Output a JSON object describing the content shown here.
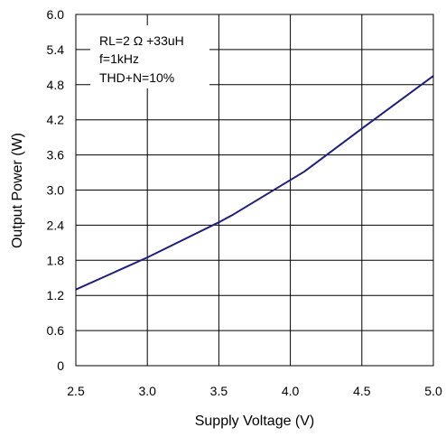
{
  "chart_data": {
    "type": "line",
    "title": "",
    "xlabel": "Supply Voltage (V)",
    "ylabel": "Output Power (W)",
    "xlim": [
      2.5,
      5.0
    ],
    "ylim": [
      0,
      6.0
    ],
    "x_ticks": [
      "2.5",
      "3.0",
      "3.5",
      "4.0",
      "4.5",
      "5.0"
    ],
    "y_ticks": [
      "0",
      "0.6",
      "1.2",
      "1.8",
      "2.4",
      "3.0",
      "3.6",
      "4.2",
      "4.8",
      "5.4",
      "6.0"
    ],
    "grid": true,
    "annotations": [
      "RL=2 Ω +33uH",
      "f=1kHz",
      "THD+N=10%"
    ],
    "series": [
      {
        "color": "#1f1f7a",
        "x": [
          2.5,
          3.0,
          3.5,
          3.6,
          4.1,
          4.5,
          5.0
        ],
        "y": [
          1.3,
          1.85,
          2.45,
          2.58,
          3.32,
          4.05,
          4.95
        ]
      }
    ]
  }
}
